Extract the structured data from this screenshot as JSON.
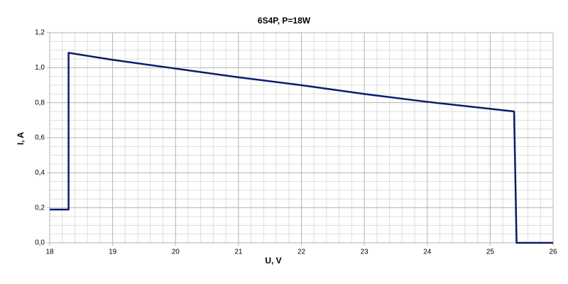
{
  "chart_data": {
    "type": "line",
    "title": "6S4P, P=18W",
    "x_label": "U, V",
    "y_label": "I, A",
    "x": [
      18,
      18.1,
      18.2,
      18.3,
      18.3,
      19,
      20,
      21,
      22,
      23,
      24,
      25,
      25.38,
      25.42,
      26
    ],
    "series": [
      {
        "name": "I",
        "color": "#0d1b6e",
        "values": [
          0.19,
          0.19,
          0.19,
          0.19,
          1.085,
          1.045,
          0.995,
          0.945,
          0.9,
          0.85,
          0.805,
          0.765,
          0.75,
          0,
          0
        ]
      }
    ],
    "xlim": [
      18,
      26
    ],
    "xticks": [
      18,
      19,
      20,
      21,
      22,
      23,
      24,
      25,
      26
    ],
    "ylim": [
      0,
      1.2
    ],
    "yticks": [
      {
        "value": 0,
        "label": "0,0"
      },
      {
        "value": 0.2,
        "label": "0,2"
      },
      {
        "value": 0.4,
        "label": "0,4"
      },
      {
        "value": 0.6,
        "label": "0,6"
      },
      {
        "value": 0.8,
        "label": "0,8"
      },
      {
        "value": 1.0,
        "label": "1,0"
      },
      {
        "value": 1.2,
        "label": "1,2"
      }
    ],
    "grid": true,
    "minor_grid": true
  }
}
